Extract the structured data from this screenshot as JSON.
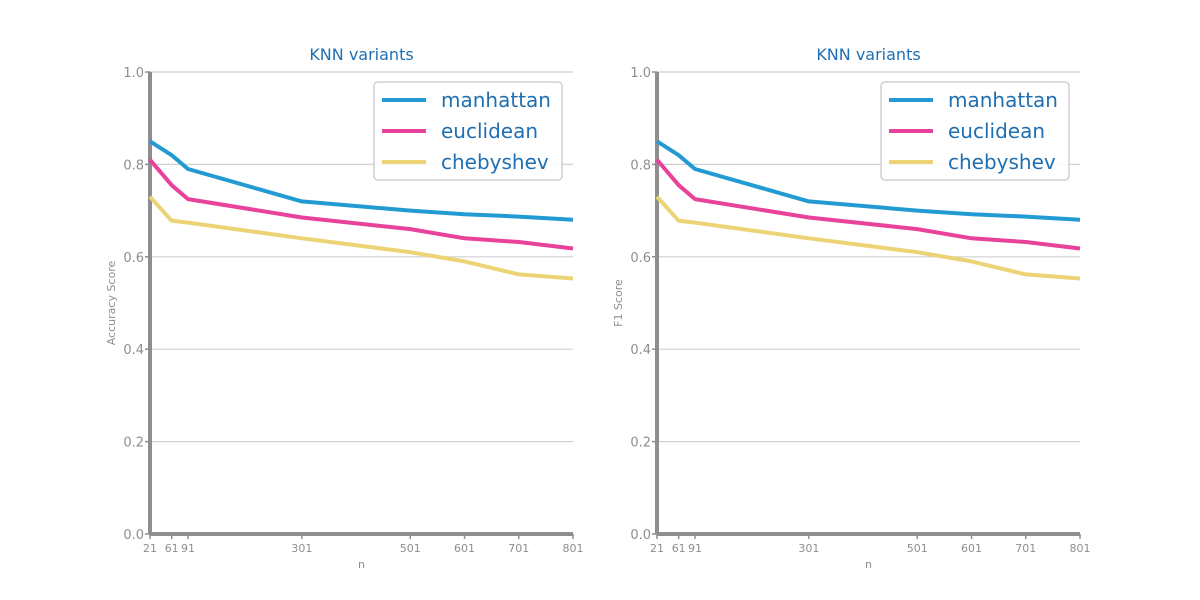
{
  "colors": {
    "title": "#1f6fb2",
    "axis": "#8e8e8e",
    "grid": "#cfcfd6",
    "tick_label": "#8e8e8e",
    "legend_text": "#1f6fb2",
    "legend_border": "#cfcfd6"
  },
  "chart_data": [
    {
      "type": "line",
      "title": "KNN variants",
      "xlabel": "n",
      "ylabel": "Accuracy Score",
      "xticks": [
        21,
        61,
        91,
        301,
        501,
        601,
        701,
        801
      ],
      "yticks": [
        0.0,
        0.2,
        0.4,
        0.6,
        0.8,
        1.0
      ],
      "xlim": [
        21,
        801
      ],
      "ylim": [
        0.0,
        1.0
      ],
      "grid": "horizontal",
      "legend_position": "top-right",
      "x": [
        21,
        61,
        91,
        301,
        501,
        601,
        701,
        801
      ],
      "series": [
        {
          "name": "manhattan",
          "color": "#229bd3",
          "values": [
            0.85,
            0.82,
            0.79,
            0.72,
            0.7,
            0.692,
            0.687,
            0.68
          ]
        },
        {
          "name": "euclidean",
          "color": "#e8429a",
          "values": [
            0.81,
            0.755,
            0.725,
            0.685,
            0.66,
            0.64,
            0.632,
            0.618
          ]
        },
        {
          "name": "chebyshev",
          "color": "#ecd476",
          "values": [
            0.73,
            0.678,
            0.674,
            0.64,
            0.61,
            0.59,
            0.562,
            0.553
          ]
        }
      ]
    },
    {
      "type": "line",
      "title": "KNN variants",
      "xlabel": "n",
      "ylabel": "F1 Score",
      "xticks": [
        21,
        61,
        91,
        301,
        501,
        601,
        701,
        801
      ],
      "yticks": [
        0.0,
        0.2,
        0.4,
        0.6,
        0.8,
        1.0
      ],
      "xlim": [
        21,
        801
      ],
      "ylim": [
        0.0,
        1.0
      ],
      "grid": "horizontal",
      "legend_position": "top-right",
      "x": [
        21,
        61,
        91,
        301,
        501,
        601,
        701,
        801
      ],
      "series": [
        {
          "name": "manhattan",
          "color": "#229bd3",
          "values": [
            0.85,
            0.82,
            0.79,
            0.72,
            0.7,
            0.692,
            0.687,
            0.68
          ]
        },
        {
          "name": "euclidean",
          "color": "#e8429a",
          "values": [
            0.81,
            0.755,
            0.725,
            0.685,
            0.66,
            0.64,
            0.632,
            0.618
          ]
        },
        {
          "name": "chebyshev",
          "color": "#ecd476",
          "values": [
            0.73,
            0.678,
            0.674,
            0.64,
            0.61,
            0.59,
            0.562,
            0.553
          ]
        }
      ]
    }
  ]
}
